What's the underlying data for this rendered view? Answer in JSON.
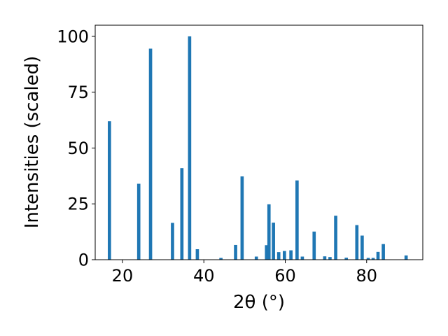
{
  "chart_data": {
    "type": "bar",
    "xlabel": "2θ (°)",
    "ylabel": "Intensities (scaled)",
    "xlim": [
      13.3,
      93.8
    ],
    "ylim": [
      0,
      105
    ],
    "xticks": [
      20,
      40,
      60,
      80
    ],
    "yticks": [
      0,
      25,
      50,
      75,
      100
    ],
    "xtick_labels": [
      "20",
      "40",
      "60",
      "80"
    ],
    "ytick_labels": [
      "0",
      "25",
      "50",
      "75",
      "100"
    ],
    "bar_width": 0.8,
    "color": "#1f77b4",
    "grid": false,
    "x": [
      16.8,
      24.0,
      26.9,
      32.3,
      34.6,
      36.5,
      38.4,
      44.2,
      47.8,
      49.4,
      52.9,
      55.4,
      56.0,
      57.1,
      58.4,
      59.8,
      61.4,
      62.9,
      64.2,
      67.1,
      69.7,
      71.0,
      72.4,
      75.0,
      77.6,
      78.9,
      80.4,
      81.6,
      82.8,
      84.1,
      89.7
    ],
    "values": [
      62,
      34,
      94.5,
      16.5,
      41,
      100,
      4.7,
      0.8,
      6.6,
      37.3,
      1.4,
      6.5,
      24.8,
      16.6,
      3.4,
      3.9,
      4.2,
      35.5,
      1.4,
      12.6,
      1.5,
      1.2,
      19.7,
      0.9,
      15.5,
      10.8,
      0.8,
      0.8,
      3.5,
      7.0,
      1.9
    ]
  }
}
